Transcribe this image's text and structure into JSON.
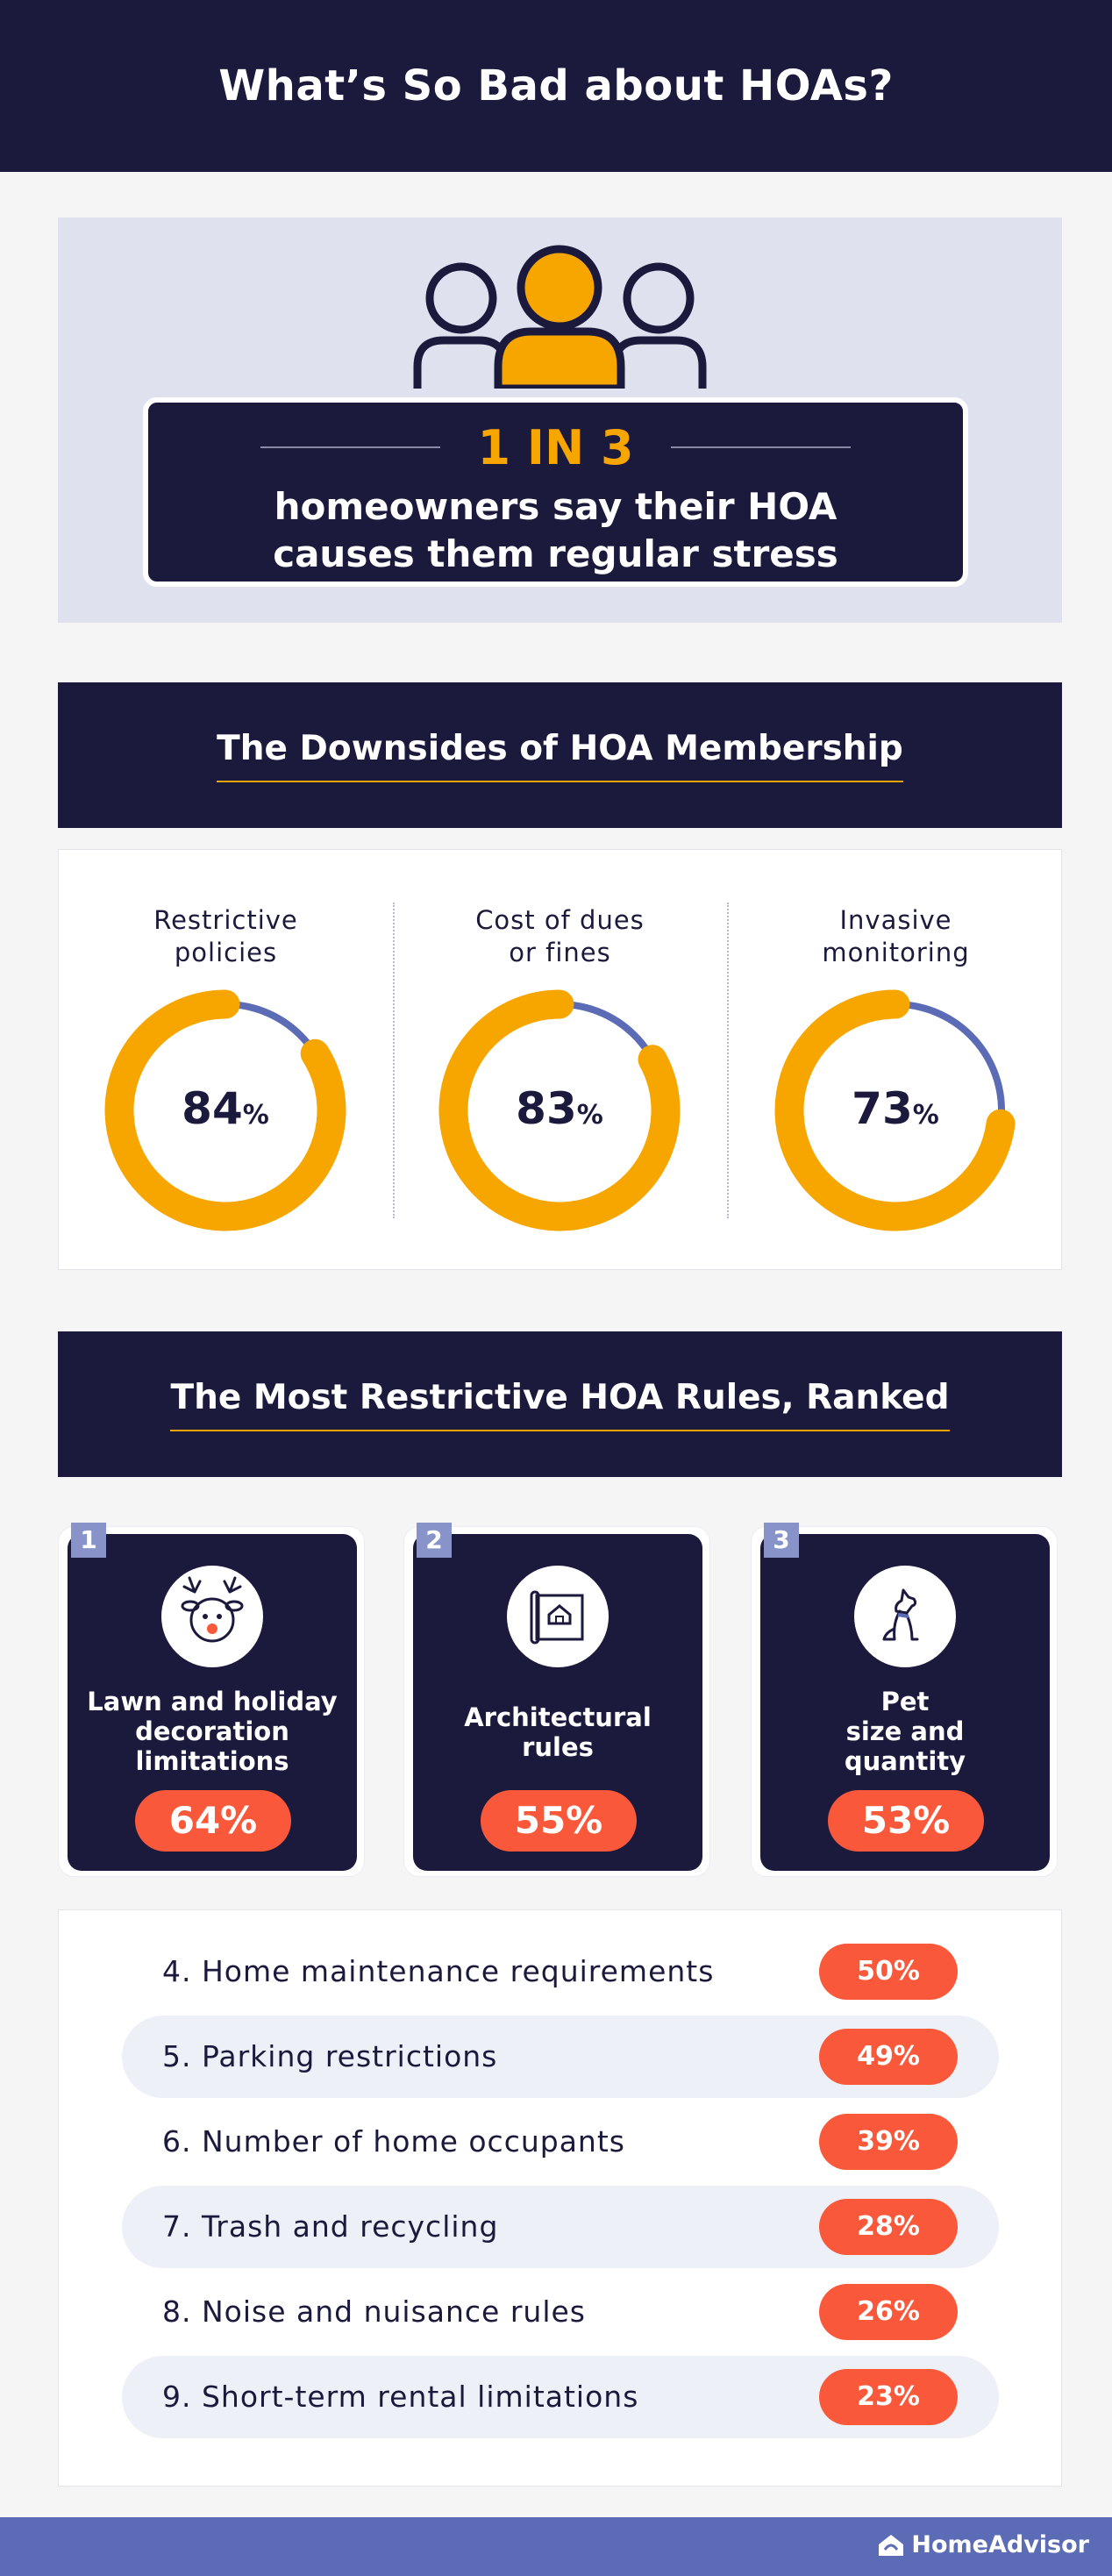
{
  "header": {
    "title": "What’s So Bad about HOAs?"
  },
  "stat": {
    "headline": "1 IN 3",
    "line1": "homeowners say their HOA",
    "line2": "causes them regular stress"
  },
  "downsides": {
    "title": "The Downsides of HOA Membership",
    "items": [
      {
        "label1": "Restrictive",
        "label2": "policies",
        "value": "84",
        "unit": "%"
      },
      {
        "label1": "Cost of dues",
        "label2": "or fines",
        "value": "83",
        "unit": "%"
      },
      {
        "label1": "Invasive",
        "label2": "monitoring",
        "value": "73",
        "unit": "%"
      }
    ]
  },
  "rules": {
    "title": "The Most Restrictive HOA Rules, Ranked",
    "top": [
      {
        "rank": "1",
        "icon": "reindeer-icon",
        "name1": "Lawn and holiday",
        "name2": "decoration",
        "name3": "limitations",
        "pct": "64%"
      },
      {
        "rank": "2",
        "icon": "blueprint-house-icon",
        "name1": "Architectural",
        "name2": "rules",
        "pct": "55%"
      },
      {
        "rank": "3",
        "icon": "dog-icon",
        "name1": "Pet",
        "name2": "size and",
        "name3": "quantity",
        "pct": "53%"
      }
    ],
    "list": [
      {
        "label": "4. Home maintenance requirements",
        "pct": "50%"
      },
      {
        "label": "5. Parking restrictions",
        "pct": "49%"
      },
      {
        "label": "6. Number of home occupants",
        "pct": "39%"
      },
      {
        "label": "7. Trash and recycling",
        "pct": "28%"
      },
      {
        "label": "8. Noise and nuisance rules",
        "pct": "26%"
      },
      {
        "label": "9. Short-term rental limitations",
        "pct": "23%"
      }
    ]
  },
  "footer": {
    "brand": "HomeAdvisor"
  },
  "colors": {
    "navy": "#1b1a3d",
    "orange": "#f7a600",
    "coral": "#f9593a",
    "periwinkle": "#5b6bb5",
    "lavender": "#dfe2ee"
  },
  "chart_data": [
    {
      "type": "pie",
      "title": "The Downsides of HOA Membership",
      "categories": [
        "Restrictive policies",
        "Cost of dues or fines",
        "Invasive monitoring"
      ],
      "values": [
        84,
        83,
        73
      ],
      "unit": "%"
    },
    {
      "type": "bar",
      "title": "The Most Restrictive HOA Rules, Ranked",
      "categories": [
        "Lawn and holiday decoration limitations",
        "Architectural rules",
        "Pet size and quantity",
        "Home maintenance requirements",
        "Parking restrictions",
        "Number of home occupants",
        "Trash and recycling",
        "Noise and nuisance rules",
        "Short-term rental limitations"
      ],
      "values": [
        64,
        55,
        53,
        50,
        49,
        39,
        28,
        26,
        23
      ],
      "unit": "%"
    }
  ]
}
